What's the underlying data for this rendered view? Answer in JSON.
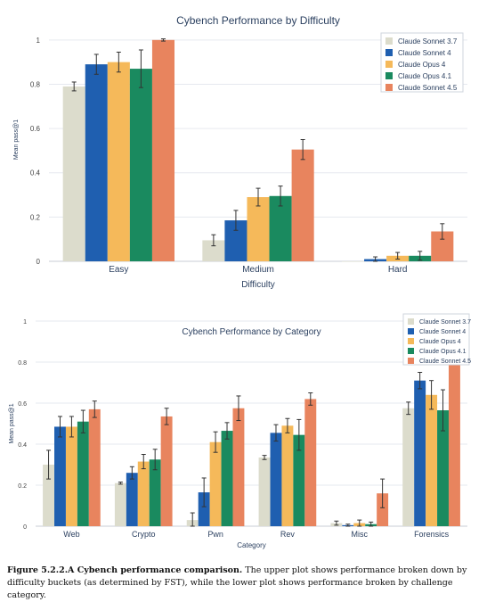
{
  "colors": {
    "Claude Sonnet 3.7": "#dcdccc",
    "Claude Sonnet 4": "#1f5fb0",
    "Claude Opus 4": "#f5b95a",
    "Claude Opus 4.1": "#1a8a5f",
    "Claude Sonnet 4.5": "#e8845e"
  },
  "chart_data": [
    {
      "type": "bar",
      "title": "Cybench Performance by Difficulty",
      "xlabel": "Difficulty",
      "ylabel": "Mean pass@1",
      "ylim": [
        0,
        1.1
      ],
      "yticks": [
        0,
        0.2,
        0.4,
        0.6,
        0.8,
        1
      ],
      "ytick_labels": [
        "0",
        "0.2",
        "0.4",
        "0.6",
        "0.8",
        "1"
      ],
      "grid": true,
      "legend_position": "top-right",
      "categories": [
        "Easy",
        "Medium",
        "Hard"
      ],
      "series": [
        {
          "name": "Claude Sonnet 3.7",
          "values": [
            0.79,
            0.095,
            0.0
          ],
          "err": [
            0.02,
            0.025,
            0.0
          ]
        },
        {
          "name": "Claude Sonnet 4",
          "values": [
            0.89,
            0.185,
            0.01
          ],
          "err": [
            0.045,
            0.045,
            0.01
          ]
        },
        {
          "name": "Claude Opus 4",
          "values": [
            0.9,
            0.29,
            0.025
          ],
          "err": [
            0.045,
            0.04,
            0.015
          ]
        },
        {
          "name": "Claude Opus 4.1",
          "values": [
            0.87,
            0.295,
            0.025
          ],
          "err": [
            0.085,
            0.045,
            0.02
          ]
        },
        {
          "name": "Claude Sonnet 4.5",
          "values": [
            1.0,
            0.505,
            0.135
          ],
          "err": [
            0.005,
            0.045,
            0.035
          ]
        }
      ]
    },
    {
      "type": "bar",
      "title": "Cybench Performance by Category",
      "xlabel": "Category",
      "ylabel": "Mean pass@1",
      "ylim": [
        0,
        1.0
      ],
      "yticks": [
        0,
        0.2,
        0.4,
        0.6,
        0.8,
        1
      ],
      "ytick_labels": [
        "0",
        "0.2",
        "0.4",
        "0.6",
        "0.8",
        "1"
      ],
      "grid": true,
      "legend_position": "top-right",
      "categories": [
        "Web",
        "Crypto",
        "Pwn",
        "Rev",
        "Misc",
        "Forensics"
      ],
      "series": [
        {
          "name": "Claude Sonnet 3.7",
          "values": [
            0.3,
            0.21,
            0.03,
            0.335,
            0.015,
            0.575
          ],
          "err": [
            0.07,
            0.005,
            0.035,
            0.01,
            0.01,
            0.03
          ]
        },
        {
          "name": "Claude Sonnet 4",
          "values": [
            0.485,
            0.26,
            0.165,
            0.455,
            0.005,
            0.71
          ],
          "err": [
            0.05,
            0.03,
            0.07,
            0.04,
            0.005,
            0.04
          ]
        },
        {
          "name": "Claude Opus 4",
          "values": [
            0.485,
            0.315,
            0.41,
            0.49,
            0.015,
            0.64
          ],
          "err": [
            0.05,
            0.035,
            0.05,
            0.035,
            0.015,
            0.07
          ]
        },
        {
          "name": "Claude Opus 4.1",
          "values": [
            0.51,
            0.325,
            0.465,
            0.445,
            0.01,
            0.565
          ],
          "err": [
            0.055,
            0.05,
            0.04,
            0.075,
            0.01,
            0.1
          ]
        },
        {
          "name": "Claude Sonnet 4.5",
          "values": [
            0.57,
            0.535,
            0.575,
            0.62,
            0.16,
            0.825
          ],
          "err": [
            0.04,
            0.04,
            0.06,
            0.03,
            0.07,
            0.025
          ]
        }
      ]
    }
  ],
  "caption": {
    "bold": "Figure 5.2.2.A Cybench performance comparison.",
    "text": " The upper plot shows performance broken down by difficulty buckets (as determined by FST), while the lower plot shows performance broken by challenge category."
  }
}
